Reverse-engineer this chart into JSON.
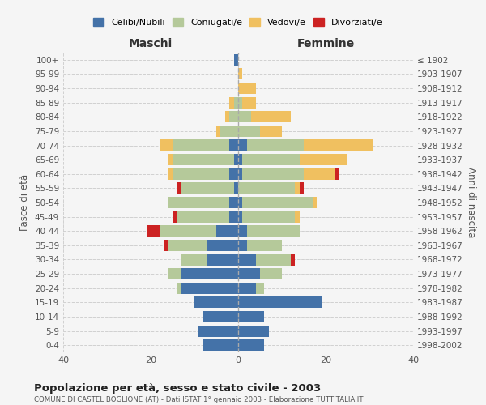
{
  "age_groups": [
    "0-4",
    "5-9",
    "10-14",
    "15-19",
    "20-24",
    "25-29",
    "30-34",
    "35-39",
    "40-44",
    "45-49",
    "50-54",
    "55-59",
    "60-64",
    "65-69",
    "70-74",
    "75-79",
    "80-84",
    "85-89",
    "90-94",
    "95-99",
    "100+"
  ],
  "birth_years": [
    "1998-2002",
    "1993-1997",
    "1988-1992",
    "1983-1987",
    "1978-1982",
    "1973-1977",
    "1968-1972",
    "1963-1967",
    "1958-1962",
    "1953-1957",
    "1948-1952",
    "1943-1947",
    "1938-1942",
    "1933-1937",
    "1928-1932",
    "1923-1927",
    "1918-1922",
    "1913-1917",
    "1908-1912",
    "1903-1907",
    "≤ 1902"
  ],
  "males": {
    "celibi": [
      8,
      9,
      8,
      10,
      13,
      13,
      7,
      7,
      5,
      2,
      2,
      1,
      2,
      1,
      2,
      0,
      0,
      0,
      0,
      0,
      1
    ],
    "coniugati": [
      0,
      0,
      0,
      0,
      1,
      3,
      6,
      9,
      13,
      12,
      14,
      12,
      13,
      14,
      13,
      4,
      2,
      1,
      0,
      0,
      0
    ],
    "vedovi": [
      0,
      0,
      0,
      0,
      0,
      0,
      0,
      0,
      0,
      0,
      0,
      0,
      1,
      1,
      3,
      1,
      1,
      1,
      0,
      0,
      0
    ],
    "divorziati": [
      0,
      0,
      0,
      0,
      0,
      0,
      0,
      1,
      3,
      1,
      0,
      1,
      0,
      0,
      0,
      0,
      0,
      0,
      0,
      0,
      0
    ]
  },
  "females": {
    "nubili": [
      6,
      7,
      6,
      19,
      4,
      5,
      4,
      2,
      2,
      1,
      1,
      0,
      1,
      1,
      2,
      0,
      0,
      0,
      0,
      0,
      0
    ],
    "coniugate": [
      0,
      0,
      0,
      0,
      2,
      5,
      8,
      8,
      12,
      12,
      16,
      13,
      14,
      13,
      13,
      5,
      3,
      1,
      0,
      0,
      0
    ],
    "vedove": [
      0,
      0,
      0,
      0,
      0,
      0,
      0,
      0,
      0,
      1,
      1,
      1,
      7,
      11,
      16,
      5,
      9,
      3,
      4,
      1,
      0
    ],
    "divorziate": [
      0,
      0,
      0,
      0,
      0,
      0,
      1,
      0,
      0,
      0,
      0,
      1,
      1,
      0,
      0,
      0,
      0,
      0,
      0,
      0,
      0
    ]
  },
  "colors": {
    "celibi": "#4472a8",
    "coniugati": "#b5c99a",
    "vedovi": "#f0c060",
    "divorziati": "#cc2222"
  },
  "xlim": 40,
  "title": "Popolazione per età, sesso e stato civile - 2003",
  "subtitle": "COMUNE DI CASTEL BOGLIONE (AT) - Dati ISTAT 1° gennaio 2003 - Elaborazione TUTTITALIA.IT",
  "xlabel_left": "Maschi",
  "xlabel_right": "Femmine",
  "ylabel_left": "Fasce di età",
  "ylabel_right": "Anni di nascita",
  "legend_labels": [
    "Celibi/Nubili",
    "Coniugati/e",
    "Vedovi/e",
    "Divorziati/e"
  ],
  "background_color": "#f5f5f5",
  "grid_color": "#cccccc"
}
